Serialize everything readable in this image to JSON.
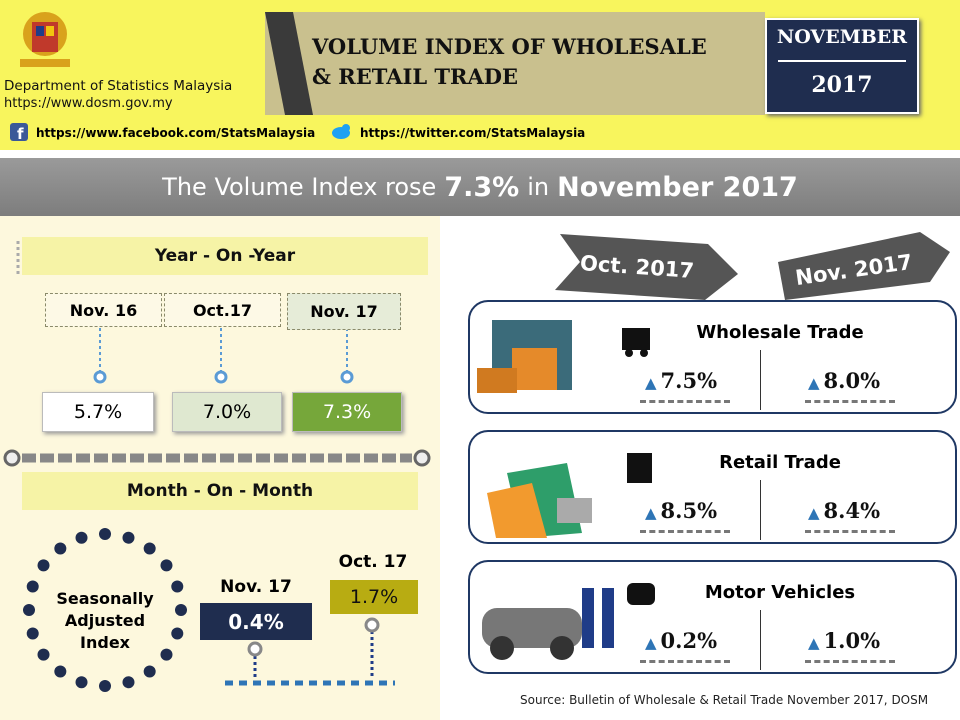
{
  "header": {
    "org": "Department of Statistics Malaysia",
    "url": "https://www.dosm.gov.my",
    "title_line1": "VOLUME INDEX OF WHOLESALE",
    "title_line2": "& RETAIL TRADE",
    "month": "NOVEMBER",
    "year": "2017",
    "facebook": "https://www.facebook.com/StatsMalaysia",
    "twitter": "https://twitter.com/StatsMalaysia"
  },
  "headline": {
    "prefix": "The Volume Index rose",
    "value": "7.3%",
    "mid": "in",
    "period": "November 2017"
  },
  "yoy": {
    "title": "Year - On -Year",
    "periods": [
      "Nov. 16",
      "Oct.17",
      "Nov. 17"
    ],
    "values": [
      "5.7%",
      "7.0%",
      "7.3%"
    ]
  },
  "mom": {
    "title": "Month - On - Month",
    "label": [
      "Seasonally",
      "Adjusted",
      "Index"
    ],
    "items": [
      {
        "period": "Nov. 17",
        "value": "0.4%"
      },
      {
        "period": "Oct. 17",
        "value": "1.7%"
      }
    ]
  },
  "comparison": {
    "from": "Oct. 2017",
    "to": "Nov. 2017",
    "sectors": [
      {
        "name": "Wholesale Trade",
        "oct": "7.5%",
        "nov": "8.0%"
      },
      {
        "name": "Retail Trade",
        "oct": "8.5%",
        "nov": "8.4%"
      },
      {
        "name": "Motor Vehicles",
        "oct": "0.2%",
        "nov": "1.0%"
      }
    ]
  },
  "source": "Source: Bulletin of Wholesale & Retail Trade November 2017, DOSM"
}
